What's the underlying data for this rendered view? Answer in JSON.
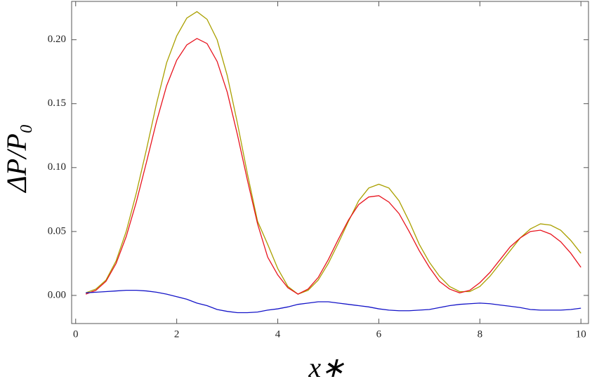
{
  "chart_data": {
    "type": "line",
    "x": [
      0.2,
      0.4,
      0.6,
      0.8,
      1.0,
      1.2,
      1.4,
      1.6,
      1.8,
      2.0,
      2.2,
      2.4,
      2.6,
      2.8,
      3.0,
      3.2,
      3.4,
      3.6,
      3.8,
      4.0,
      4.2,
      4.4,
      4.6,
      4.8,
      5.0,
      5.2,
      5.4,
      5.6,
      5.8,
      6.0,
      6.2,
      6.4,
      6.6,
      6.8,
      7.0,
      7.2,
      7.4,
      7.6,
      7.8,
      8.0,
      8.2,
      8.4,
      8.6,
      8.8,
      9.0,
      9.2,
      9.4,
      9.6,
      9.8,
      10.0
    ],
    "series": [
      {
        "color": "#aaa000",
        "values": [
          0.002,
          0.005,
          0.012,
          0.027,
          0.05,
          0.08,
          0.114,
          0.15,
          0.182,
          0.203,
          0.217,
          0.222,
          0.216,
          0.2,
          0.172,
          0.135,
          0.095,
          0.058,
          0.04,
          0.021,
          0.007,
          0.001,
          0.004,
          0.012,
          0.025,
          0.041,
          0.058,
          0.074,
          0.084,
          0.087,
          0.084,
          0.074,
          0.058,
          0.04,
          0.026,
          0.015,
          0.007,
          0.003,
          0.003,
          0.007,
          0.015,
          0.025,
          0.035,
          0.045,
          0.052,
          0.056,
          0.055,
          0.051,
          0.043,
          0.033
        ]
      },
      {
        "color": "#e8141e",
        "values": [
          0.001,
          0.004,
          0.011,
          0.025,
          0.046,
          0.073,
          0.104,
          0.136,
          0.164,
          0.184,
          0.196,
          0.201,
          0.197,
          0.183,
          0.159,
          0.126,
          0.09,
          0.056,
          0.03,
          0.016,
          0.006,
          0.001,
          0.005,
          0.014,
          0.028,
          0.044,
          0.059,
          0.071,
          0.077,
          0.078,
          0.073,
          0.064,
          0.05,
          0.035,
          0.022,
          0.011,
          0.005,
          0.002,
          0.004,
          0.01,
          0.018,
          0.028,
          0.038,
          0.045,
          0.05,
          0.051,
          0.048,
          0.042,
          0.033,
          0.022
        ]
      },
      {
        "color": "#1414c8",
        "values": [
          0.002,
          0.0025,
          0.003,
          0.0035,
          0.004,
          0.004,
          0.0035,
          0.0025,
          0.001,
          -0.001,
          -0.003,
          -0.006,
          -0.008,
          -0.011,
          -0.0125,
          -0.0135,
          -0.0135,
          -0.013,
          -0.0115,
          -0.0105,
          -0.009,
          -0.007,
          -0.006,
          -0.005,
          -0.005,
          -0.006,
          -0.007,
          -0.008,
          -0.009,
          -0.0105,
          -0.0115,
          -0.012,
          -0.012,
          -0.0115,
          -0.011,
          -0.0095,
          -0.008,
          -0.007,
          -0.0065,
          -0.006,
          -0.0065,
          -0.0075,
          -0.0085,
          -0.0095,
          -0.011,
          -0.0115,
          -0.0115,
          -0.0115,
          -0.011,
          -0.01
        ]
      }
    ],
    "xlabel": "x∗",
    "ylabel": "ΔP/P₀",
    "xlim": [
      -0.08,
      10.15
    ],
    "ylim": [
      -0.022,
      0.23
    ],
    "xticks": [
      0,
      2,
      4,
      6,
      8,
      10
    ],
    "yticks": [
      {
        "value": 0,
        "label": "0.00"
      },
      {
        "value": 0.05,
        "label": "0.05"
      },
      {
        "value": 0.1,
        "label": "0.10"
      },
      {
        "value": 0.15,
        "label": "0.15"
      },
      {
        "value": 0.2,
        "label": "0.20"
      }
    ]
  }
}
